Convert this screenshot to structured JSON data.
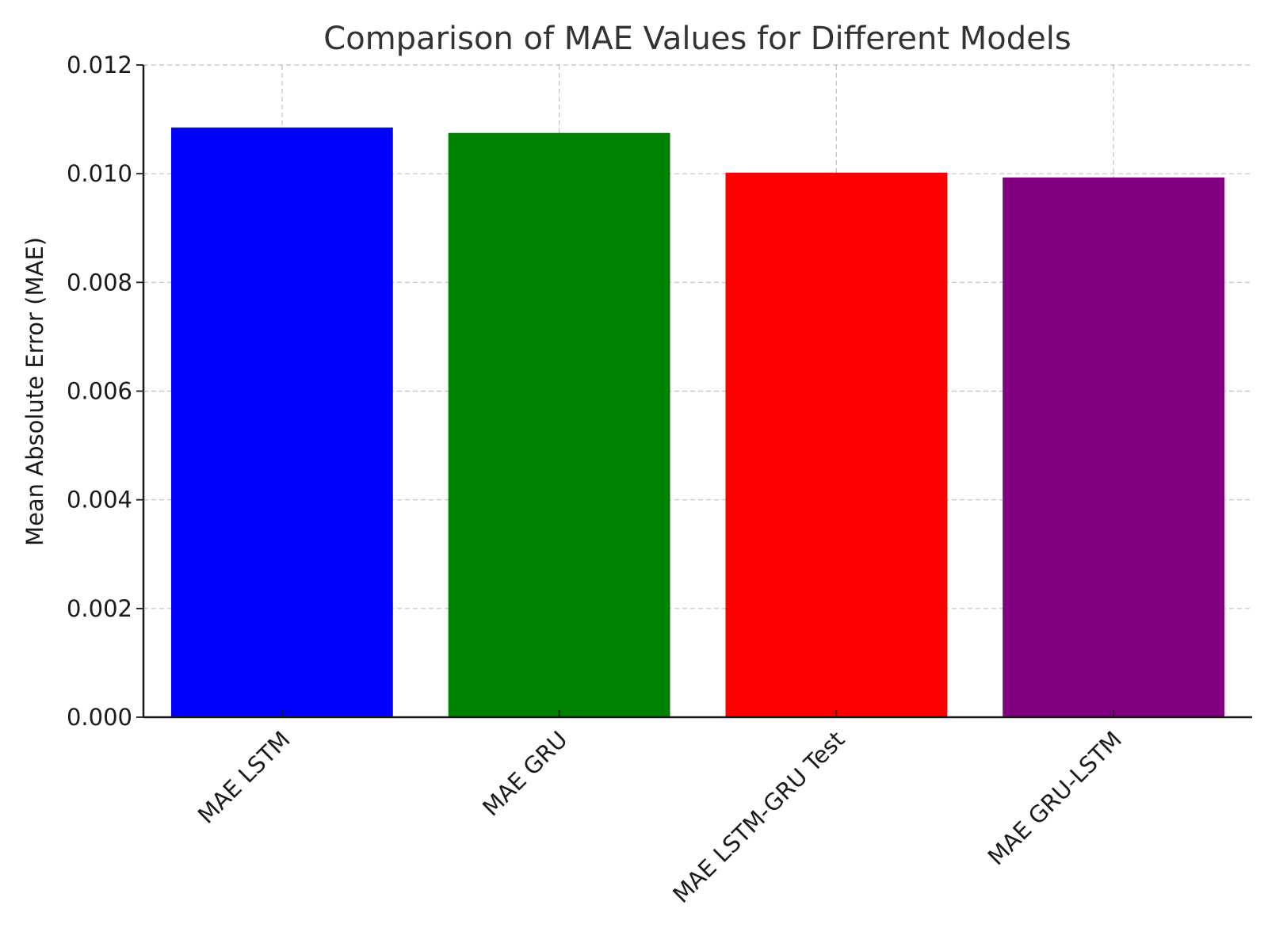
{
  "chart_data": {
    "type": "bar",
    "title": "Comparison of MAE Values for Different Models",
    "xlabel": "",
    "ylabel": "Mean Absolute Error (MAE)",
    "categories": [
      "MAE LSTM",
      "MAE GRU",
      "MAE LSTM-GRU Test",
      "MAE GRU-LSTM"
    ],
    "values": [
      0.01085,
      0.01075,
      0.01002,
      0.00993
    ],
    "colors": [
      "#0000ff",
      "#008000",
      "#ff0000",
      "#800080"
    ],
    "ylim": [
      0,
      0.012
    ],
    "yticks": [
      0.0,
      0.002,
      0.004,
      0.006,
      0.008,
      0.01,
      0.012
    ],
    "ytick_labels": [
      "0.000",
      "0.002",
      "0.004",
      "0.006",
      "0.008",
      "0.010",
      "0.012"
    ],
    "grid": true,
    "grid_style": "dashed",
    "legend": "none"
  }
}
